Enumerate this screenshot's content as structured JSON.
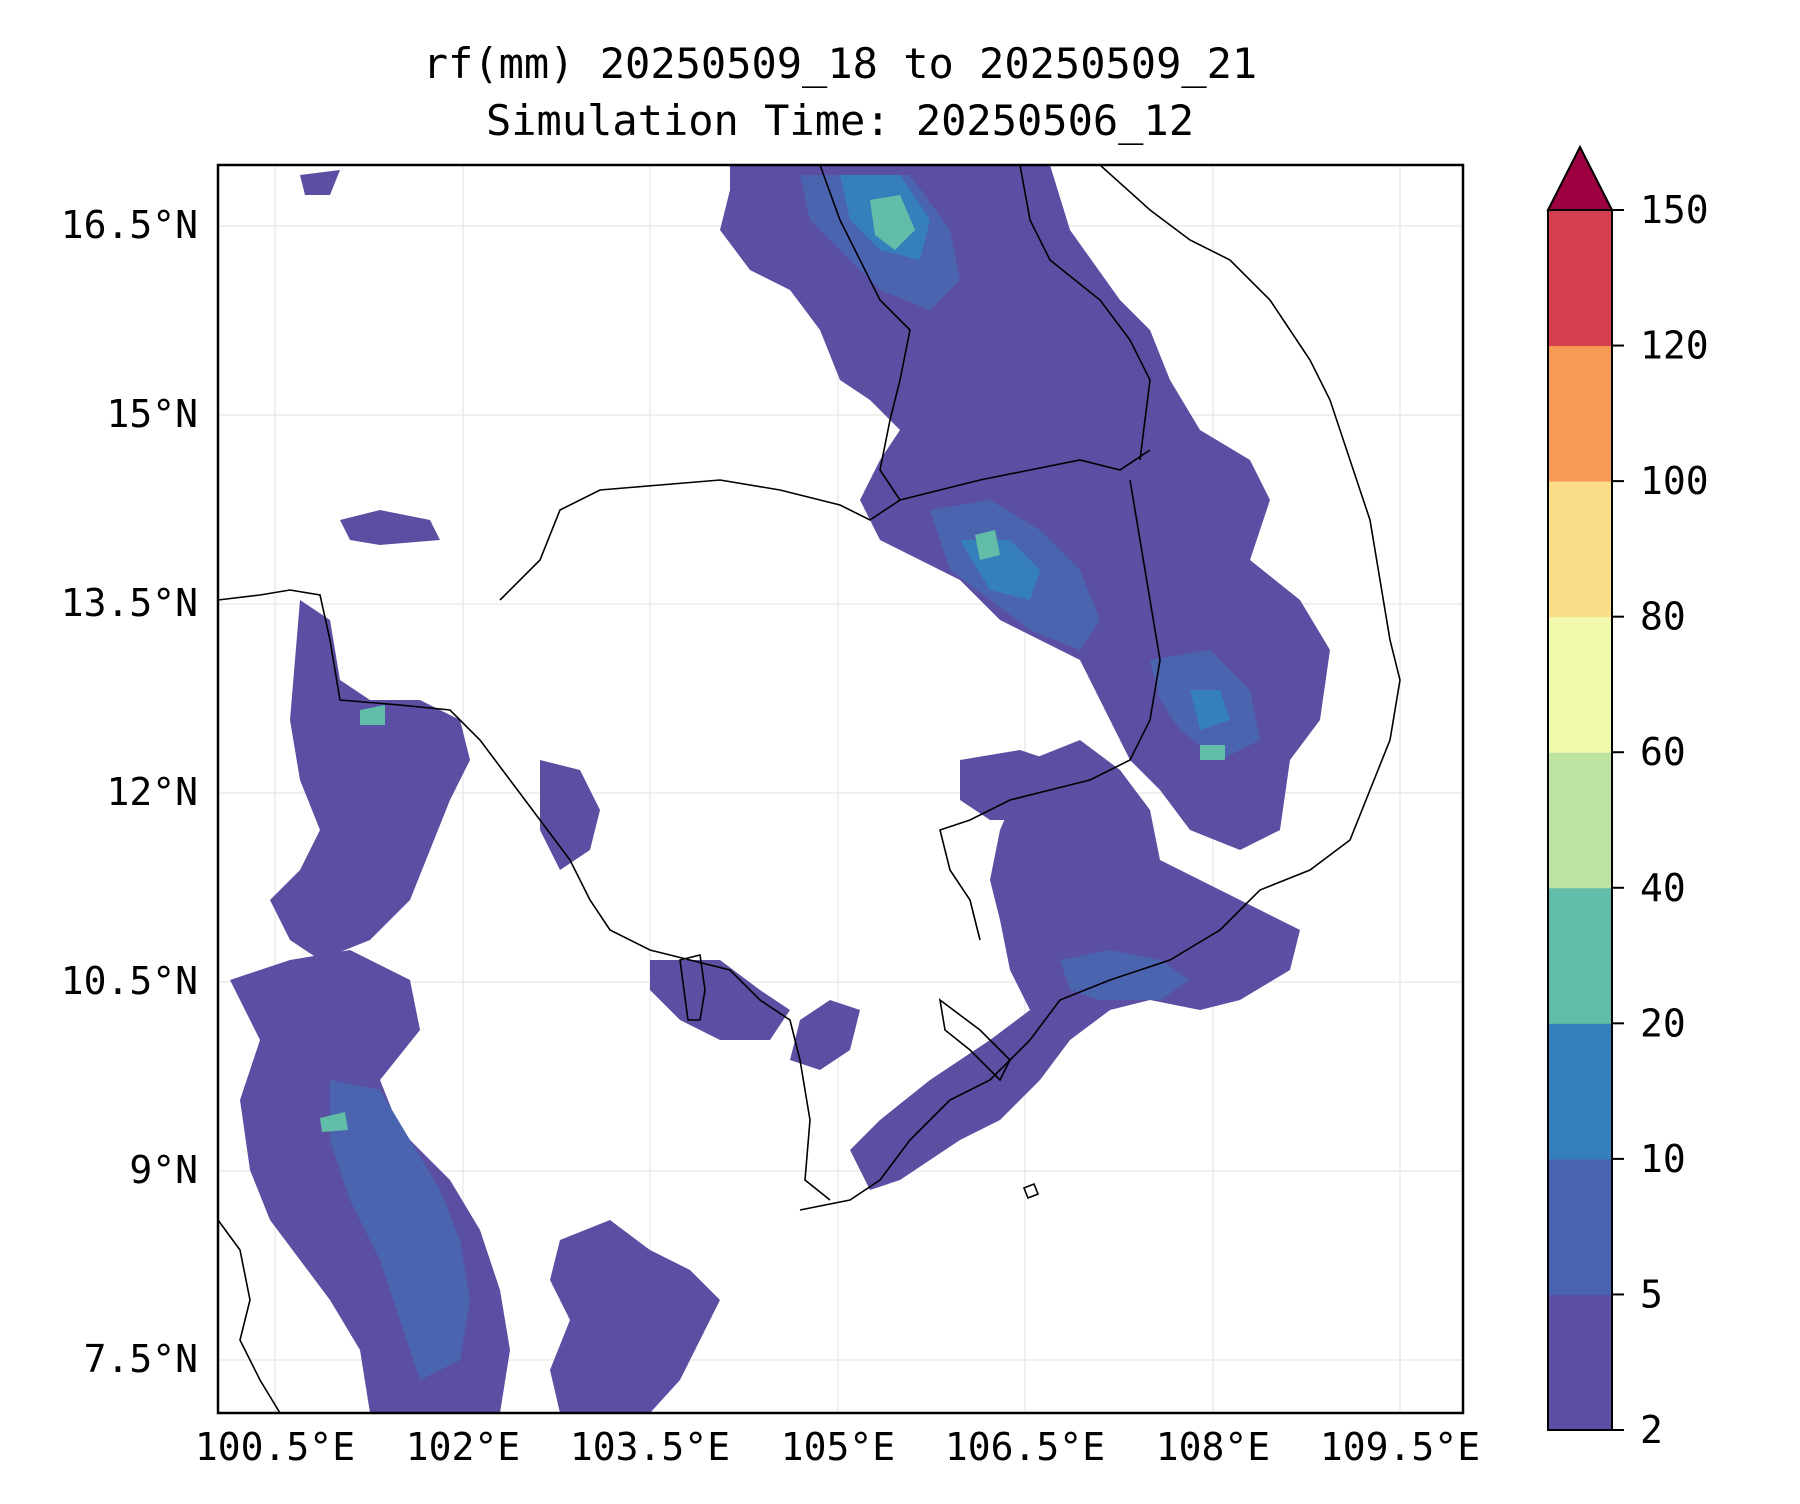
{
  "title": {
    "line1": "rf(mm) 20250509_18 to 20250509_21",
    "line2": "Simulation Time: 20250506_12"
  },
  "map": {
    "lon_ticks": [
      "100.5°E",
      "102°E",
      "103.5°E",
      "105°E",
      "106.5°E",
      "108°E",
      "109.5°E"
    ],
    "lat_ticks": [
      "16.5°N",
      "15°N",
      "13.5°N",
      "12°N",
      "10.5°N",
      "9°N",
      "7.5°N"
    ],
    "lon_range": [
      100.5,
      109.5
    ],
    "lat_range": [
      7.5,
      16.5
    ],
    "grid": true
  },
  "colorbar": {
    "levels": [
      "2",
      "5",
      "10",
      "20",
      "40",
      "60",
      "80",
      "100",
      "120",
      "150"
    ],
    "colors": [
      "#5a4fa2",
      "#4a64b0",
      "#3580ba",
      "#62bda8",
      "#bde3a1",
      "#f3f9ad",
      "#fbde87",
      "#f89b57",
      "#d53e4f",
      "#9e0142"
    ],
    "extend": "max"
  }
}
